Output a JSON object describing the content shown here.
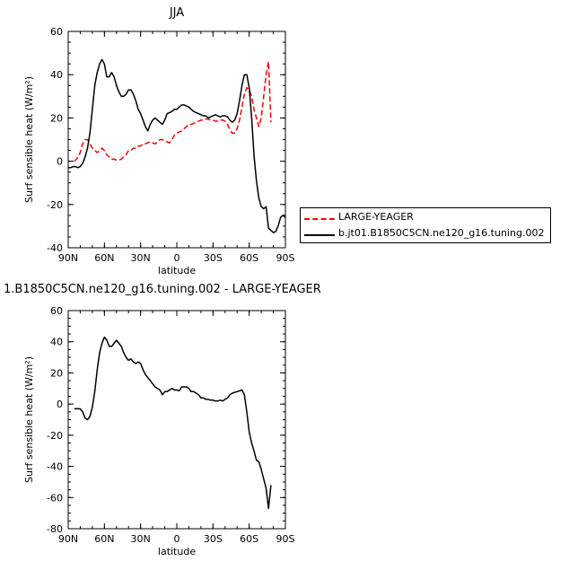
{
  "chart_data": [
    {
      "type": "line",
      "title": "JJA",
      "xlabel": "latitude",
      "ylabel": "Surf sensible heat (W/m²)",
      "xlim": [
        90,
        -90
      ],
      "ylim": [
        -40,
        60
      ],
      "yticks": [
        -40,
        -20,
        0,
        20,
        40,
        60
      ],
      "xtick_values": [
        90,
        60,
        30,
        0,
        -30,
        -60,
        -90
      ],
      "xtick_labels": [
        "90N",
        "60N",
        "30N",
        "0",
        "30S",
        "60S",
        "90S"
      ],
      "legend": {
        "position": "right",
        "entries": [
          "LARGE-YEAGER",
          "b.jt01.B1850C5CN.ne120_g16.tuning.002"
        ]
      },
      "series": [
        {
          "name": "LARGE-YEAGER",
          "color": "#ff0000",
          "style": "dashed",
          "x": [
            85,
            83,
            80,
            78,
            76,
            74,
            72,
            70,
            68,
            66,
            64,
            62,
            60,
            58,
            56,
            54,
            52,
            50,
            48,
            46,
            44,
            42,
            40,
            38,
            36,
            34,
            32,
            30,
            28,
            26,
            24,
            22,
            20,
            18,
            16,
            14,
            12,
            10,
            8,
            6,
            4,
            2,
            0,
            -2,
            -4,
            -6,
            -8,
            -10,
            -12,
            -14,
            -16,
            -18,
            -20,
            -22,
            -24,
            -26,
            -28,
            -30,
            -32,
            -34,
            -36,
            -38,
            -40,
            -42,
            -44,
            -46,
            -48,
            -50,
            -52,
            -54,
            -56,
            -58,
            -60,
            -62,
            -64,
            -66,
            -68,
            -70,
            -72,
            -74,
            -76,
            -78
          ],
          "values": [
            0,
            1,
            4,
            8,
            10,
            10,
            8,
            6,
            5,
            4,
            5,
            6,
            5,
            3,
            2,
            1,
            1,
            0.5,
            0.5,
            1,
            2,
            3,
            5,
            5,
            6,
            6,
            7,
            7,
            8,
            8,
            8.5,
            9,
            8.5,
            8,
            9,
            10,
            10,
            9.5,
            9,
            8.5,
            10,
            12,
            13,
            13.5,
            14,
            15,
            16,
            17,
            17,
            17.5,
            18,
            18.5,
            19,
            19,
            19.5,
            19.5,
            19,
            19,
            18.5,
            18.5,
            19,
            19,
            18.5,
            17,
            14.5,
            13,
            13,
            15,
            19,
            25,
            31,
            34,
            33,
            30,
            24,
            20,
            16,
            20,
            30,
            40,
            46,
            18
          ]
        },
        {
          "name": "b.jt01.B1850C5CN.ne120_g16.tuning.002",
          "color": "#000000",
          "style": "solid",
          "x": [
            90,
            88,
            86,
            84,
            82,
            80,
            78,
            76,
            74,
            72,
            70,
            68,
            66,
            64,
            62,
            60,
            58,
            56,
            54,
            52,
            50,
            48,
            46,
            44,
            42,
            40,
            38,
            36,
            34,
            32,
            30,
            28,
            26,
            24,
            22,
            20,
            18,
            16,
            14,
            12,
            10,
            8,
            6,
            4,
            2,
            0,
            -2,
            -4,
            -6,
            -8,
            -10,
            -12,
            -14,
            -16,
            -18,
            -20,
            -22,
            -24,
            -26,
            -28,
            -30,
            -32,
            -34,
            -36,
            -38,
            -40,
            -42,
            -44,
            -46,
            -48,
            -50,
            -52,
            -54,
            -56,
            -58,
            -60,
            -62,
            -64,
            -66,
            -68,
            -70,
            -72,
            -74,
            -76,
            -78,
            -80,
            -82,
            -84,
            -86,
            -88,
            -90
          ],
          "values": [
            -3,
            -3,
            -2.5,
            -2.5,
            -3,
            -2.5,
            -1,
            2,
            6,
            13,
            24,
            35,
            41,
            45,
            47,
            45,
            39,
            39,
            41,
            39,
            35,
            32,
            30,
            30,
            31,
            33,
            33,
            31,
            28,
            24,
            22,
            19,
            16,
            14,
            17,
            19,
            20,
            19,
            18,
            17,
            19,
            22,
            22.5,
            23,
            24,
            24,
            25,
            26,
            26,
            25.5,
            25,
            24,
            23,
            22.5,
            22,
            21.5,
            21,
            21,
            20,
            20.5,
            21,
            21.5,
            21,
            20.5,
            21,
            21,
            20.5,
            19,
            18,
            19,
            22,
            28,
            35,
            40,
            40,
            34,
            20,
            3,
            -9,
            -17,
            -21,
            -22,
            -21,
            -31,
            -32,
            -33,
            -32.5,
            -30,
            -26,
            -25,
            -26
          ]
        }
      ]
    },
    {
      "type": "line",
      "title": "1.B1850C5CN.ne120_g16.tuning.002 - LARGE-YEAGER",
      "xlabel": "latitude",
      "ylabel": "Surf sensible heat (W/m²)",
      "xlim": [
        90,
        -90
      ],
      "ylim": [
        -80,
        60
      ],
      "yticks": [
        -80,
        -60,
        -40,
        -20,
        0,
        20,
        40,
        60
      ],
      "xtick_values": [
        90,
        60,
        30,
        0,
        -30,
        -60,
        -90
      ],
      "xtick_labels": [
        "90N",
        "60N",
        "30N",
        "0",
        "30S",
        "60S",
        "90S"
      ],
      "series": [
        {
          "color": "#000000",
          "style": "solid",
          "x": [
            85,
            83,
            80,
            78,
            76,
            74,
            72,
            70,
            68,
            66,
            64,
            62,
            60,
            58,
            56,
            54,
            52,
            50,
            48,
            46,
            44,
            42,
            40,
            38,
            36,
            34,
            32,
            30,
            28,
            26,
            24,
            22,
            20,
            18,
            16,
            14,
            12,
            10,
            8,
            6,
            4,
            2,
            0,
            -2,
            -4,
            -6,
            -8,
            -10,
            -12,
            -14,
            -16,
            -18,
            -20,
            -22,
            -24,
            -26,
            -28,
            -30,
            -32,
            -34,
            -36,
            -38,
            -40,
            -42,
            -44,
            -46,
            -48,
            -50,
            -52,
            -54,
            -56,
            -58,
            -60,
            -62,
            -64,
            -66,
            -68,
            -70,
            -72,
            -74,
            -76,
            -78
          ],
          "values": [
            -3,
            -3,
            -3,
            -5,
            -9,
            -10,
            -8,
            -2,
            8,
            22,
            33,
            39,
            43,
            41,
            37,
            37,
            39,
            41,
            39,
            37,
            33,
            30,
            28,
            29,
            27,
            26,
            27,
            26,
            22,
            19,
            17,
            15,
            13,
            11,
            10,
            9,
            6,
            8,
            8,
            9,
            10,
            9,
            9,
            8.5,
            11,
            11,
            11,
            10,
            8,
            8,
            7,
            6,
            4,
            4,
            3,
            3,
            2.5,
            2.5,
            2,
            2,
            2.5,
            2,
            3,
            4,
            6,
            7,
            7.5,
            8,
            8.5,
            9,
            6,
            -5,
            -18,
            -25,
            -30,
            -36,
            -37,
            -42,
            -48,
            -54,
            -67,
            -52
          ]
        }
      ]
    }
  ]
}
